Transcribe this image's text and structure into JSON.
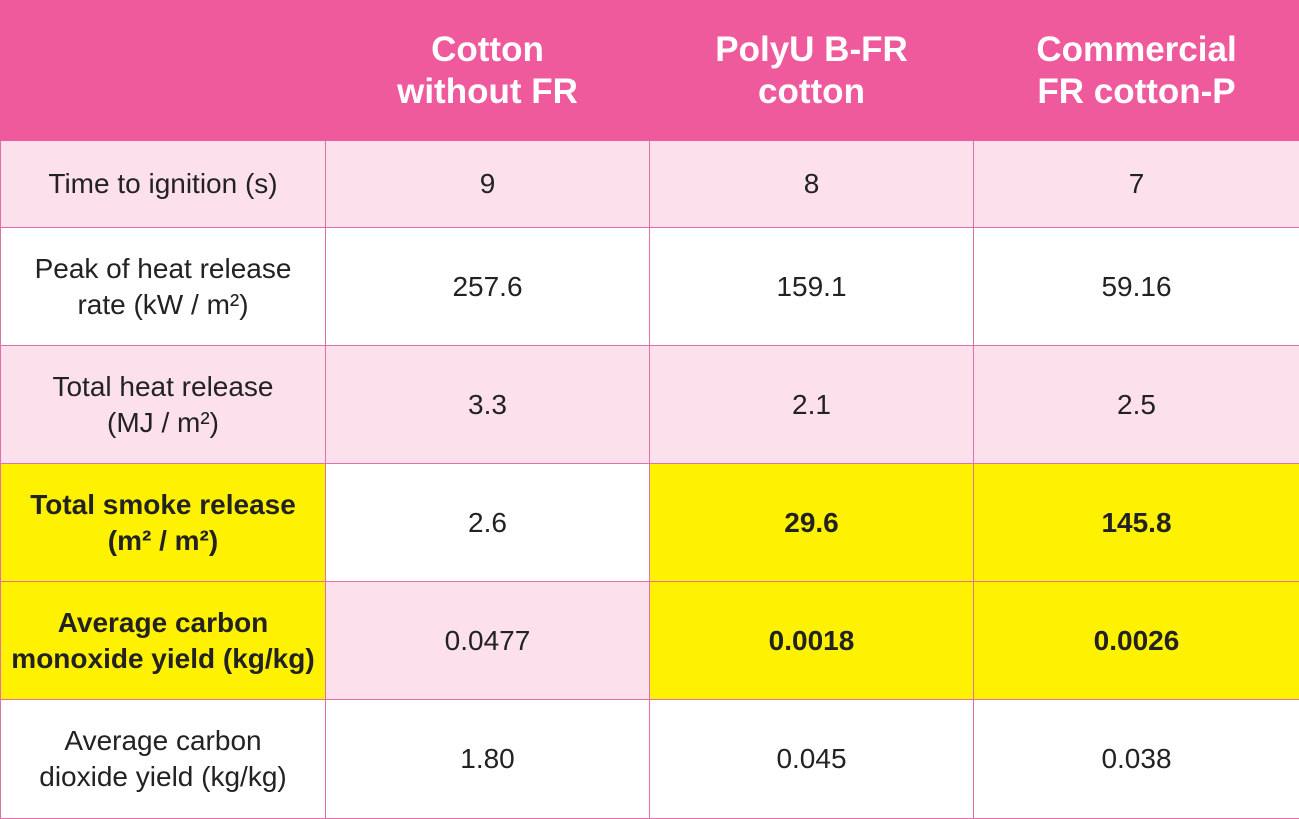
{
  "table": {
    "header": [
      "",
      "Cotton\nwithout FR",
      "PolyU B-FR\ncotton",
      "Commercial\nFR cotton-P"
    ],
    "rows": [
      [
        "Time to ignition (s)",
        "9",
        "8",
        "7"
      ],
      [
        "Peak of heat release\nrate (kW / m²)",
        "257.6",
        "159.1",
        "59.16"
      ],
      [
        "Total heat release\n(MJ / m²)",
        "3.3",
        "2.1",
        "2.5"
      ],
      [
        "Total smoke release\n(m² / m²)",
        "2.6",
        "29.6",
        "145.8"
      ],
      [
        "Average carbon\nmonoxide yield (kg/kg)",
        "0.0477",
        "0.0018",
        "0.0026"
      ],
      [
        "Average carbon\ndioxide yield (kg/kg)",
        "1.80",
        "0.045",
        "0.038"
      ]
    ]
  }
}
